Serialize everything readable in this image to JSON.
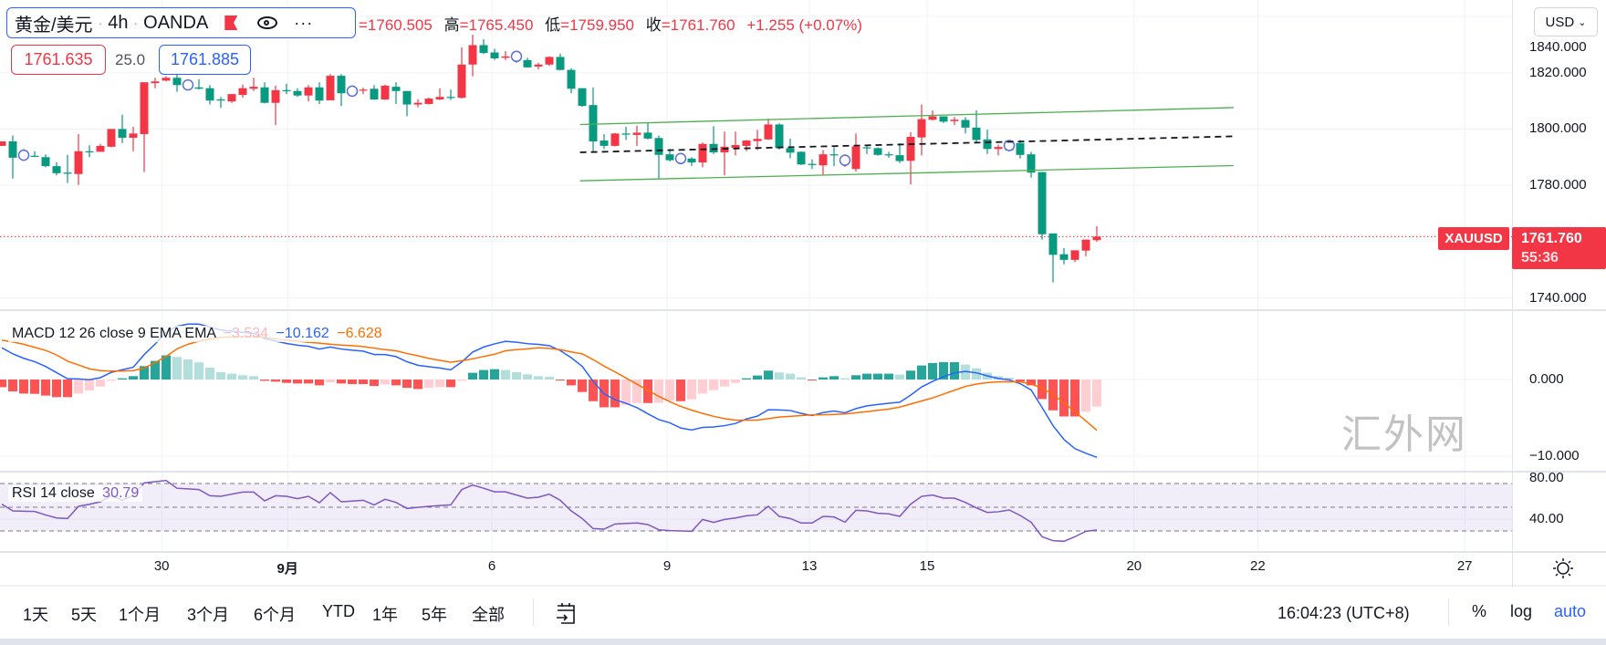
{
  "legend": {
    "symbol": "黄金/美元",
    "interval": "4h",
    "exchange": "OANDA",
    "sep": "·",
    "more": "···",
    "open_value": "=1760.505",
    "high_label": "高",
    "high_value": "=1765.450",
    "low_label": "低",
    "low_value": "=1759.950",
    "close_label": "收",
    "close_value": "=1761.760",
    "change": "+1.255 (+0.07%)"
  },
  "quote": {
    "bid": "1761.635",
    "spread": "25.0",
    "ask": "1761.885"
  },
  "price_axis": {
    "currency": "USD",
    "labels": [
      {
        "text": "1840.000",
        "price": 1840
      },
      {
        "text": "1820.000",
        "price": 1820
      },
      {
        "text": "1800.000",
        "price": 1800
      },
      {
        "text": "1780.000",
        "price": 1780
      },
      {
        "text": "1740.000",
        "price": 1740
      }
    ],
    "symbol_tag": "XAUUSD",
    "last_price": "1761.760",
    "countdown": "55:36"
  },
  "macd": {
    "title": "MACD 12 26 close 9 EMA EMA",
    "hist_value": "−3.534",
    "macd_value": "−10.162",
    "signal_value": "−6.628",
    "axis_labels": [
      {
        "text": "0.000",
        "value": 0
      },
      {
        "text": "−10.000",
        "value": -10
      }
    ]
  },
  "rsi": {
    "title": "RSI 14 close",
    "value": "30.79",
    "axis_labels": [
      {
        "text": "80.00",
        "value": 80
      },
      {
        "text": "40.00",
        "value": 40
      }
    ]
  },
  "time_axis": [
    {
      "label": "30",
      "bar": 14.6,
      "bold": false
    },
    {
      "label": "9月",
      "bar": 26.1,
      "bold": true
    },
    {
      "label": "6",
      "bar": 44.75,
      "bold": false
    },
    {
      "label": "9",
      "bar": 60.75,
      "bold": false
    },
    {
      "label": "13",
      "bar": 73.75,
      "bold": false
    },
    {
      "label": "15",
      "bar": 84.5,
      "bold": false
    },
    {
      "label": "20",
      "bar": 103.4,
      "bold": false
    },
    {
      "label": "22",
      "bar": 114.7,
      "bold": false
    },
    {
      "label": "27",
      "bar": 133.6,
      "bold": false
    }
  ],
  "toolbar": {
    "ranges": [
      "1天",
      "5天",
      "1个月",
      "3个月",
      "6个月",
      "YTD",
      "1年",
      "5年",
      "全部"
    ],
    "clock": "16:04:23 (UTC+8)",
    "percent": "%",
    "log": "log",
    "auto": "auto"
  },
  "watermark": "汇外网",
  "colors": {
    "up": "#f23645",
    "down": "#089981",
    "macd": "#2962ff",
    "signal": "#ff6d00",
    "rsi": "#7e57c2",
    "channel": "#4caf50",
    "marker": "#5b6fd6"
  },
  "chart_data": {
    "type": "candlestick",
    "symbol": "XAUUSD",
    "interval": "4h",
    "ohlc": [
      [
        1794.0,
        1795.6,
        1794.0,
        1795.6
      ],
      [
        1795.6,
        1797.7,
        1782.4,
        1789.8
      ],
      [
        1791.4,
        1792.9,
        1788.7,
        1790.0
      ],
      [
        1790.5,
        1792.1,
        1790.0,
        1790.1
      ],
      [
        1790.0,
        1791.0,
        1786.4,
        1786.8
      ],
      [
        1786.8,
        1788.2,
        1783.5,
        1784.3
      ],
      [
        1784.5,
        1790.8,
        1780.8,
        1784.1
      ],
      [
        1784.0,
        1798.2,
        1780.1,
        1792.1
      ],
      [
        1792.1,
        1794.2,
        1790.0,
        1791.9
      ],
      [
        1791.9,
        1794.7,
        1791.9,
        1794.0
      ],
      [
        1793.7,
        1800.0,
        1793.5,
        1800.0
      ],
      [
        1800.0,
        1805.1,
        1795.0,
        1796.9
      ],
      [
        1796.9,
        1800.8,
        1792.1,
        1798.4
      ],
      [
        1798.2,
        1816.6,
        1784.7,
        1816.6
      ],
      [
        1816.3,
        1818.2,
        1814.5,
        1816.9
      ],
      [
        1817.2,
        1818.8,
        1817.0,
        1818.2
      ],
      [
        1818.2,
        1819.3,
        1813.2,
        1815.6
      ],
      [
        1816.3,
        1817.0,
        1814.0,
        1815.0
      ],
      [
        1814.8,
        1817.7,
        1814.0,
        1814.3
      ],
      [
        1814.5,
        1815.6,
        1808.7,
        1810.1
      ],
      [
        1810.5,
        1811.4,
        1807.5,
        1810.1
      ],
      [
        1809.8,
        1812.4,
        1809.3,
        1812.4
      ],
      [
        1812.1,
        1815.8,
        1811.1,
        1814.5
      ],
      [
        1814.3,
        1818.2,
        1813.5,
        1815.0
      ],
      [
        1814.8,
        1816.6,
        1809.1,
        1809.3
      ],
      [
        1809.3,
        1815.4,
        1801.4,
        1813.8
      ],
      [
        1813.8,
        1816.1,
        1812.4,
        1813.4
      ],
      [
        1813.5,
        1814.5,
        1811.4,
        1811.9
      ],
      [
        1811.9,
        1815.6,
        1809.8,
        1814.8
      ],
      [
        1814.8,
        1816.6,
        1808.9,
        1810.1
      ],
      [
        1810.2,
        1819.5,
        1810.2,
        1818.9
      ],
      [
        1818.9,
        1819.5,
        1808.2,
        1812.7
      ],
      [
        1814.5,
        1815.0,
        1812.0,
        1812.4
      ],
      [
        1813.7,
        1814.7,
        1812.4,
        1814.0
      ],
      [
        1814.3,
        1815.6,
        1810.3,
        1810.5
      ],
      [
        1810.5,
        1815.8,
        1810.3,
        1815.4
      ],
      [
        1815.0,
        1816.6,
        1808.9,
        1813.5
      ],
      [
        1813.5,
        1813.5,
        1804.5,
        1808.7
      ],
      [
        1808.7,
        1810.6,
        1807.7,
        1809.3
      ],
      [
        1808.9,
        1811.2,
        1808.7,
        1810.8
      ],
      [
        1810.5,
        1814.5,
        1810.3,
        1811.4
      ],
      [
        1811.4,
        1814.0,
        1810.3,
        1811.1
      ],
      [
        1811.1,
        1829.0,
        1810.8,
        1822.9
      ],
      [
        1822.9,
        1833.5,
        1818.7,
        1829.8
      ],
      [
        1829.8,
        1831.9,
        1826.6,
        1827.0
      ],
      [
        1827.2,
        1828.5,
        1824.5,
        1825.1
      ],
      [
        1825.3,
        1827.7,
        1824.5,
        1825.8
      ],
      [
        1826.6,
        1827.0,
        1823.5,
        1825.0
      ],
      [
        1824.5,
        1825.3,
        1821.9,
        1821.9
      ],
      [
        1822.2,
        1823.5,
        1821.2,
        1822.9
      ],
      [
        1822.9,
        1825.8,
        1822.4,
        1825.6
      ],
      [
        1825.6,
        1826.8,
        1820.8,
        1821.0
      ],
      [
        1821.0,
        1821.6,
        1812.7,
        1814.3
      ],
      [
        1814.5,
        1814.5,
        1807.9,
        1808.2
      ],
      [
        1808.5,
        1814.8,
        1792.1,
        1795.6
      ],
      [
        1795.9,
        1798.2,
        1792.9,
        1794.0
      ],
      [
        1794.0,
        1798.6,
        1793.8,
        1798.4
      ],
      [
        1798.4,
        1800.8,
        1796.1,
        1798.0
      ],
      [
        1797.9,
        1801.2,
        1794.0,
        1798.7
      ],
      [
        1798.7,
        1802.1,
        1796.3,
        1796.6
      ],
      [
        1796.8,
        1797.7,
        1782.2,
        1790.8
      ],
      [
        1791.0,
        1792.9,
        1788.5,
        1788.9
      ],
      [
        1791.0,
        1791.5,
        1787.5,
        1788.0
      ],
      [
        1789.5,
        1790.0,
        1786.8,
        1788.1
      ],
      [
        1788.1,
        1795.2,
        1786.4,
        1794.7
      ],
      [
        1794.7,
        1801.0,
        1791.1,
        1791.7
      ],
      [
        1791.7,
        1799.1,
        1783.5,
        1793.7
      ],
      [
        1793.3,
        1799.1,
        1790.6,
        1794.3
      ],
      [
        1794.0,
        1796.1,
        1792.1,
        1795.9
      ],
      [
        1795.7,
        1799.7,
        1792.5,
        1796.5
      ],
      [
        1796.3,
        1803.7,
        1796.1,
        1801.6
      ],
      [
        1801.6,
        1802.0,
        1792.7,
        1793.2
      ],
      [
        1793.2,
        1796.6,
        1789.6,
        1791.6
      ],
      [
        1791.9,
        1792.1,
        1787.2,
        1787.4
      ],
      [
        1787.6,
        1789.2,
        1785.8,
        1787.2
      ],
      [
        1787.1,
        1792.5,
        1783.5,
        1791.0
      ],
      [
        1791.0,
        1793.5,
        1786.8,
        1790.6
      ],
      [
        1787.5,
        1791.0,
        1786.5,
        1790.3
      ],
      [
        1785.8,
        1798.4,
        1784.9,
        1793.8
      ],
      [
        1793.5,
        1794.2,
        1791.1,
        1793.2
      ],
      [
        1793.2,
        1793.5,
        1790.5,
        1790.8
      ],
      [
        1791.0,
        1791.9,
        1789.8,
        1790.6
      ],
      [
        1790.7,
        1795.0,
        1787.9,
        1788.6
      ],
      [
        1788.7,
        1798.9,
        1780.3,
        1797.2
      ],
      [
        1797.0,
        1808.7,
        1790.6,
        1803.5
      ],
      [
        1803.3,
        1806.6,
        1803.0,
        1804.5
      ],
      [
        1804.5,
        1804.5,
        1802.2,
        1802.6
      ],
      [
        1802.8,
        1804.3,
        1801.4,
        1803.3
      ],
      [
        1803.2,
        1804.2,
        1798.4,
        1800.5
      ],
      [
        1800.5,
        1806.6,
        1794.8,
        1796.1
      ],
      [
        1796.3,
        1799.8,
        1791.1,
        1792.9
      ],
      [
        1792.9,
        1794.5,
        1790.6,
        1793.6
      ],
      [
        1795.9,
        1796.0,
        1792.0,
        1792.4
      ],
      [
        1795.0,
        1796.1,
        1789.5,
        1790.8
      ],
      [
        1791.0,
        1791.9,
        1782.7,
        1784.5
      ],
      [
        1784.7,
        1784.7,
        1760.7,
        1762.6
      ],
      [
        1762.9,
        1762.9,
        1745.5,
        1755.3
      ],
      [
        1755.5,
        1757.7,
        1751.9,
        1753.5
      ],
      [
        1753.5,
        1756.9,
        1752.7,
        1756.9
      ],
      [
        1756.8,
        1760.7,
        1754.8,
        1760.7
      ],
      [
        1760.505,
        1765.45,
        1759.95,
        1761.76
      ]
    ],
    "session_markers": [
      2,
      17,
      32,
      47,
      62,
      77,
      92
    ],
    "trend_lines": [
      {
        "name": "channel-upper",
        "style": "solid",
        "from": [
          52.8,
          1801.6
        ],
        "to": [
          112.5,
          1807.6
        ]
      },
      {
        "name": "channel-lower",
        "style": "solid",
        "from": [
          52.8,
          1781.6
        ],
        "to": [
          112.5,
          1787.0
        ]
      },
      {
        "name": "channel-mid",
        "style": "dashed",
        "from": [
          52.8,
          1791.7
        ],
        "to": [
          112.5,
          1797.4
        ]
      }
    ],
    "last_price": 1761.76,
    "price_range": [
      1735,
      1846
    ],
    "macd_signal": [
      5.14,
      4.9,
      4.6,
      4.2,
      3.8,
      3.2,
      2.4,
      1.9,
      1.4,
      1.16,
      1.1,
      1.12,
      1.16,
      1.5,
      2.2,
      3.0,
      4.0,
      4.6,
      5.0,
      5.3,
      5.5,
      5.55,
      5.6,
      5.6,
      5.5,
      5.3,
      5.14,
      5.0,
      4.85,
      4.74,
      4.6,
      4.5,
      4.42,
      4.3,
      4.1,
      3.9,
      3.75,
      3.4,
      3.1,
      2.75,
      2.5,
      2.27,
      2.45,
      2.7,
      3.0,
      3.3,
      3.75,
      3.9,
      4.0,
      4.14,
      4.06,
      3.9,
      3.6,
      3.35,
      2.6,
      1.75,
      1.0,
      0.2,
      -0.6,
      -1.4,
      -2.2,
      -2.9,
      -3.5,
      -4.0,
      -4.42,
      -4.8,
      -5.1,
      -5.3,
      -5.3,
      -5.3,
      -5.1,
      -4.9,
      -4.8,
      -4.7,
      -4.62,
      -4.6,
      -4.55,
      -4.5,
      -4.35,
      -4.2,
      -4.02,
      -3.85,
      -3.6,
      -3.2,
      -2.8,
      -2.4,
      -1.9,
      -1.4,
      -0.9,
      -0.6,
      -0.4,
      -0.3,
      -0.28,
      -0.3,
      -0.6,
      -1.1,
      -2.0,
      -3.0,
      -4.2,
      -5.4,
      -6.628
    ],
    "macd_histogram": [
      -1.0,
      -1.55,
      -1.83,
      -1.87,
      -2.1,
      -2.3,
      -2.3,
      -1.83,
      -1.43,
      -0.92,
      -0.16,
      0.16,
      0.44,
      1.75,
      2.43,
      3.15,
      2.95,
      2.63,
      2.23,
      1.55,
      0.96,
      0.76,
      0.56,
      0.44,
      -0.16,
      -0.28,
      -0.44,
      -0.52,
      -0.52,
      -0.76,
      -0.36,
      -0.52,
      -0.6,
      -0.6,
      -0.84,
      -0.64,
      -0.76,
      -1.08,
      -1.24,
      -1.08,
      -1.0,
      -1.0,
      -0.16,
      0.88,
      1.24,
      1.35,
      1.24,
      0.96,
      0.68,
      0.44,
      0.36,
      -0.12,
      -0.76,
      -1.63,
      -2.83,
      -3.63,
      -3.63,
      -3.3,
      -3.07,
      -3.07,
      -3.03,
      -2.75,
      -2.83,
      -2.59,
      -1.83,
      -1.39,
      -0.92,
      -0.44,
      0.16,
      0.52,
      1.16,
      0.92,
      0.76,
      0.28,
      -0.08,
      0.28,
      0.44,
      0.16,
      0.56,
      0.76,
      0.76,
      0.76,
      0.64,
      1.16,
      1.83,
      2.15,
      2.27,
      2.27,
      1.95,
      1.47,
      0.88,
      0.44,
      0.24,
      -0.24,
      -0.76,
      -2.55,
      -4.02,
      -4.82,
      -4.82,
      -4.22,
      -3.534
    ],
    "rsi": [
      52.6,
      46.9,
      46.6,
      46.4,
      43.5,
      41,
      40.5,
      50.8,
      52.5,
      54.6,
      59.7,
      55.9,
      60,
      70.5,
      71.5,
      72.6,
      66,
      65.5,
      64.9,
      59.7,
      59.2,
      61,
      62.8,
      62.8,
      55.4,
      59.7,
      59.2,
      57.2,
      59.2,
      53.8,
      62.3,
      54.6,
      55.2,
      55.9,
      52,
      56.7,
      54.1,
      49,
      49.9,
      50.8,
      51.4,
      52,
      64.9,
      68.7,
      66,
      63,
      63,
      60.3,
      57.7,
      58.5,
      61,
      55.9,
      46.9,
      40.5,
      32,
      31.5,
      35.9,
      36.3,
      36.7,
      35.4,
      31,
      30.3,
      30,
      29.7,
      39.7,
      37.2,
      39.7,
      41,
      42.8,
      43.6,
      50.8,
      42.3,
      40.5,
      36.7,
      36.7,
      42.3,
      41.8,
      37.4,
      47.4,
      46.9,
      44.9,
      44.4,
      42.3,
      52.6,
      59.2,
      60.3,
      57.7,
      57.7,
      54.1,
      49.5,
      45.6,
      46.2,
      47.7,
      43.1,
      37.4,
      25.1,
      21.8,
      21.3,
      25.1,
      29.7,
      30.79
    ],
    "rsi_levels": [
      70,
      50,
      30
    ],
    "macd_range": [
      -11,
      8
    ]
  }
}
